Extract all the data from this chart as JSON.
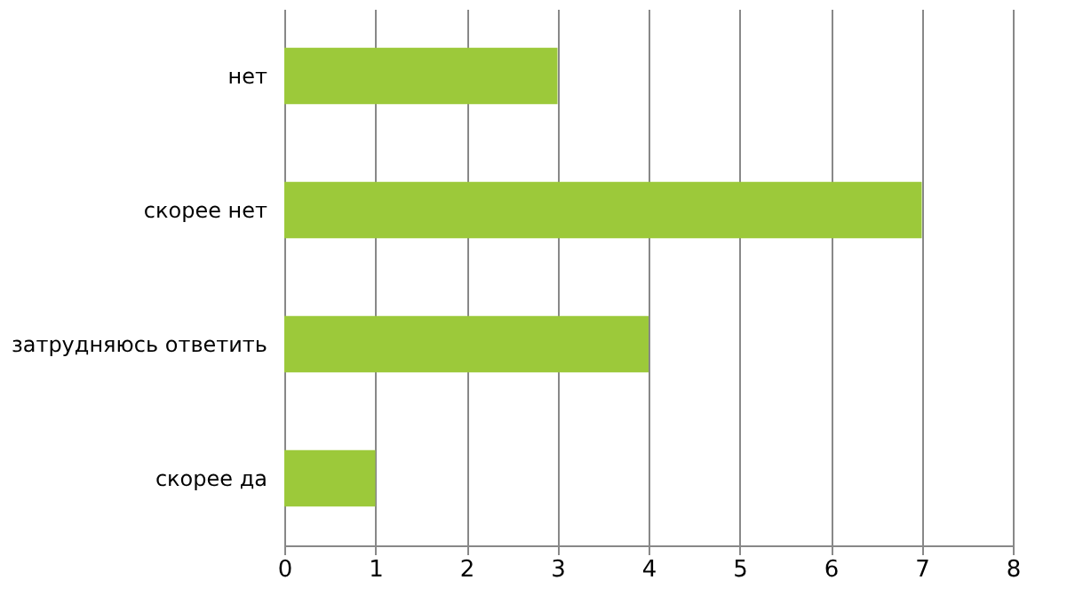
{
  "chart_data": {
    "type": "bar",
    "orientation": "horizontal",
    "categories": [
      "нет",
      "скорее нет",
      "затрудняюсь ответить",
      "скорее да"
    ],
    "values": [
      3,
      7,
      4,
      1
    ],
    "color": "#9cc93a",
    "xlim": [
      0,
      8
    ],
    "xticks": [
      0,
      1,
      2,
      3,
      4,
      5,
      6,
      7,
      8
    ],
    "grid": "x"
  }
}
